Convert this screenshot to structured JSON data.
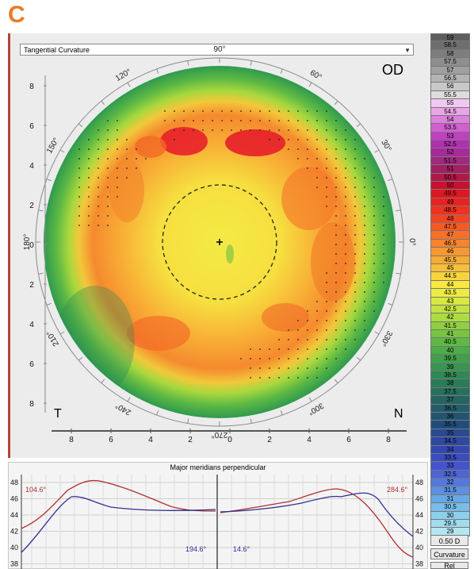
{
  "panel_letter": "C",
  "map": {
    "dropdown_label": "Tangential Curvature",
    "eye": "OD",
    "temporal": "T",
    "nasal": "N",
    "angle_labels": [
      "0°",
      "30°",
      "60°",
      "90°",
      "120°",
      "150°",
      "180°",
      "210°",
      "240°",
      "270°",
      "300°",
      "330°"
    ],
    "y_ticks": [
      "8",
      "6",
      "4",
      "2",
      "0",
      "2",
      "4",
      "6",
      "8"
    ],
    "x_ticks": [
      "8",
      "6",
      "4",
      "2",
      "0",
      "2",
      "4",
      "6",
      "8"
    ]
  },
  "legend": {
    "values": [
      "59",
      "58.5",
      "58",
      "57.5",
      "57",
      "56.5",
      "56",
      "55.5",
      "55",
      "54.5",
      "54",
      "53.5",
      "53",
      "52.5",
      "52",
      "51.5",
      "51",
      "50.5",
      "50",
      "49.5",
      "49",
      "48.5",
      "48",
      "47.5",
      "47",
      "46.5",
      "46",
      "45.5",
      "45",
      "44.5",
      "44",
      "43.5",
      "43",
      "42.5",
      "42",
      "41.5",
      "41",
      "40.5",
      "40",
      "39.5",
      "39",
      "38.5",
      "38",
      "37.5",
      "37",
      "36.5",
      "36",
      "35.5",
      "35",
      "34.5",
      "34",
      "33.5",
      "33",
      "32.5",
      "32",
      "31.5",
      "31",
      "30.5",
      "30",
      "29.5",
      "29"
    ],
    "colors": [
      "#5e5e5e",
      "#6e6e6e",
      "#7e7e7e",
      "#8e8e8e",
      "#a0a0a0",
      "#b4b4b4",
      "#c8c8c8",
      "#dcdcdc",
      "#f0c8f0",
      "#e8a6e8",
      "#dc82dc",
      "#d060d0",
      "#c040c0",
      "#b030b0",
      "#a82a9a",
      "#a02880",
      "#a02060",
      "#b01848",
      "#c81030",
      "#dc1820",
      "#ea2020",
      "#f03020",
      "#f44422",
      "#f65a24",
      "#f87028",
      "#f8842c",
      "#f89830",
      "#f8ac34",
      "#f8c038",
      "#f8d43c",
      "#f8e840",
      "#ecec40",
      "#d8e840",
      "#c4e240",
      "#acdc40",
      "#90d040",
      "#78c440",
      "#60b844",
      "#4cac48",
      "#40a04c",
      "#389450",
      "#308854",
      "#2a7c58",
      "#28705c",
      "#266460",
      "#245c68",
      "#225470",
      "#204c7c",
      "#2a4a90",
      "#3048a0",
      "#3448b0",
      "#3c4cc0",
      "#4454cc",
      "#4c64d4",
      "#5478dc",
      "#5c90e0",
      "#68a8e4",
      "#78bce8",
      "#8cd0ec",
      "#a0dcee",
      "#b4e6f0"
    ],
    "step_label": "0.50 D",
    "mode_label": "Curvature",
    "rel_label": "Rel"
  },
  "profile": {
    "title": "Major meridians perpendicular",
    "y_ticks": [
      "48",
      "46",
      "44",
      "42",
      "40",
      "38"
    ],
    "left_red_label": "104.6°",
    "left_blue_label": "194.6°",
    "right_red_label": "284.6°",
    "right_blue_label": "14.6°",
    "red_color": "#b03030",
    "blue_color": "#303090"
  }
}
